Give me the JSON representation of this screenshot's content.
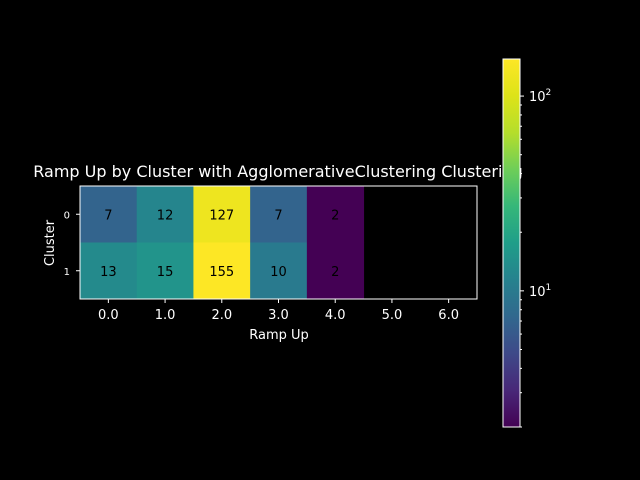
{
  "chart_data": {
    "type": "heatmap",
    "title": "Ramp Up by Cluster with AgglomerativeClustering Clustering",
    "xlabel": "Ramp Up",
    "ylabel": "Cluster",
    "x_categories": [
      "0.0",
      "1.0",
      "2.0",
      "3.0",
      "4.0",
      "5.0",
      "6.0"
    ],
    "y_categories": [
      "0",
      "1"
    ],
    "values": [
      [
        7,
        12,
        127,
        7,
        2,
        null,
        null
      ],
      [
        13,
        15,
        155,
        10,
        2,
        null,
        null
      ]
    ],
    "colorbar": {
      "scale": "log",
      "min": 2,
      "max": 155,
      "colormap": "viridis",
      "tick_labels": [
        {
          "value": 10,
          "base": "10",
          "exp": "1"
        },
        {
          "value": 100,
          "base": "10",
          "exp": "2"
        }
      ]
    },
    "grid": false,
    "background": "#000000"
  }
}
